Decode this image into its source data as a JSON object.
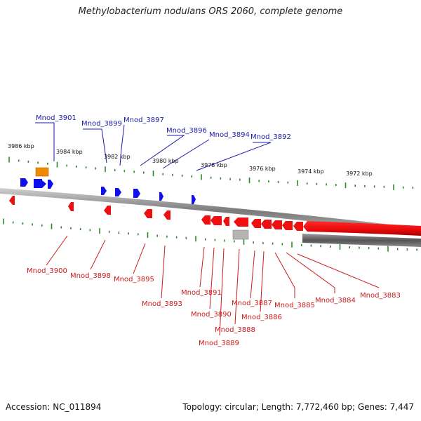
{
  "title": "Methylobacterium nodulans ORS 2060, complete genome",
  "footer": {
    "accession": "Accession: NC_011894",
    "summary": "Topology: circular; Length: 7,772,460 bp; Genes: 7,447"
  },
  "colors": {
    "forward_gene": "#1010ee",
    "reverse_gene": "#ee1010",
    "forward_label": "#1a1aa8",
    "reverse_label": "#cc1a1a",
    "tick": "#2a8a2a",
    "backbone": "#888888",
    "special_gene": "#f08a00",
    "pseudo_gene": "#b0b0b0"
  },
  "ruler_labels": [
    "3986 kbp",
    "3984 kbp",
    "3982 kbp",
    "3980 kbp",
    "3978 kbp",
    "3976 kbp",
    "3974 kbp",
    "3972 kbp"
  ],
  "forward_gene_labels": [
    "Mnod_3901",
    "Mnod_3899",
    "Mnod_3897",
    "Mnod_3896",
    "Mnod_3894",
    "Mnod_3892"
  ],
  "reverse_gene_labels": [
    "Mnod_3900",
    "Mnod_3898",
    "Mnod_3895",
    "Mnod_3893",
    "Mnod_3891",
    "Mnod_3890",
    "Mnod_3888",
    "Mnod_3889",
    "Mnod_3887",
    "Mnod_3886",
    "Mnod_3885",
    "Mnod_3884",
    "Mnod_3883"
  ]
}
